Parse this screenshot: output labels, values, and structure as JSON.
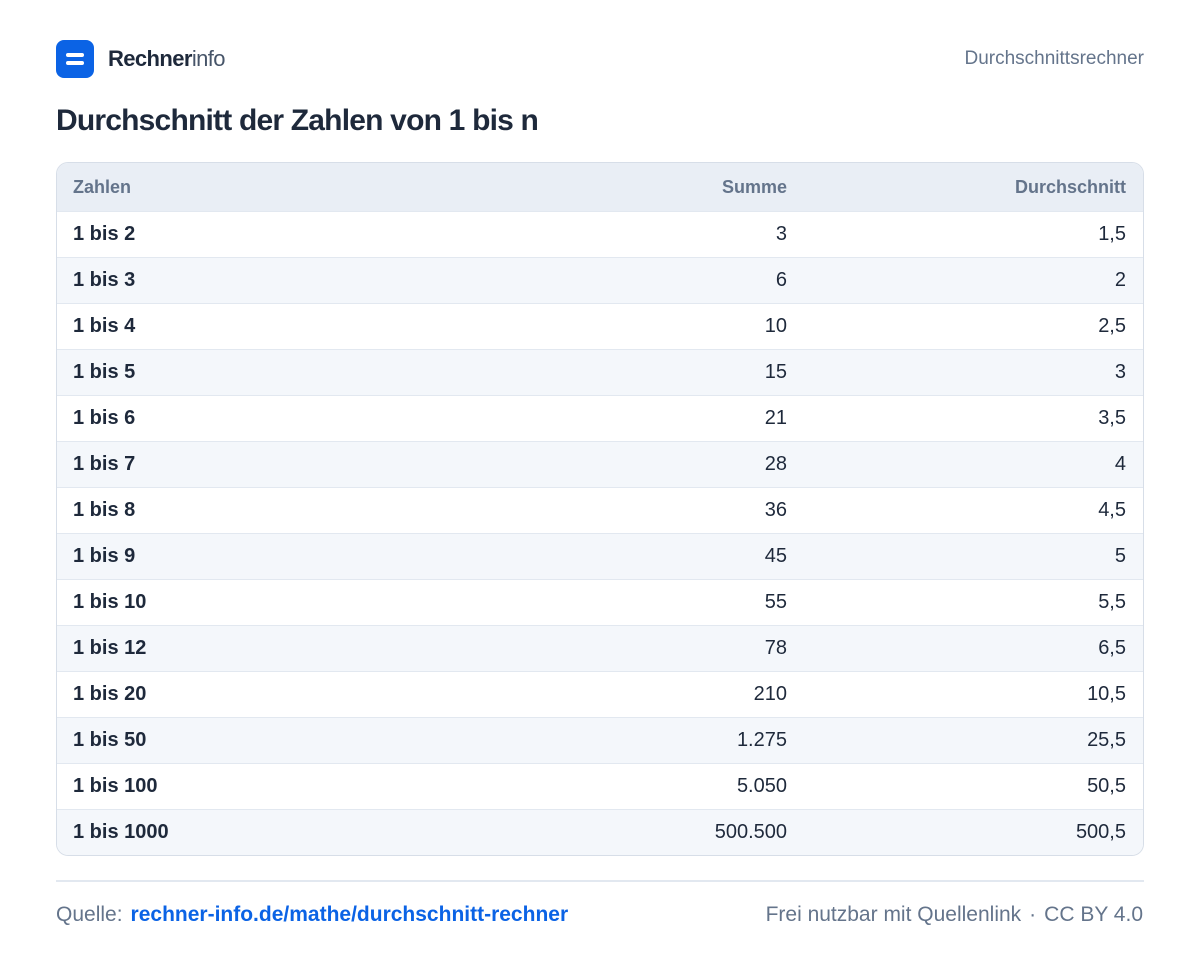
{
  "brand": {
    "name_bold": "Rechner",
    "name_light": "info"
  },
  "header": {
    "right_label": "Durchschnittsrechner"
  },
  "title": "Durchschnitt der Zahlen von 1 bis n",
  "table": {
    "headers": [
      "Zahlen",
      "Summe",
      "Durchschnitt"
    ],
    "rows": [
      [
        "1 bis 2",
        "3",
        "1,5"
      ],
      [
        "1 bis 3",
        "6",
        "2"
      ],
      [
        "1 bis 4",
        "10",
        "2,5"
      ],
      [
        "1 bis 5",
        "15",
        "3"
      ],
      [
        "1 bis 6",
        "21",
        "3,5"
      ],
      [
        "1 bis 7",
        "28",
        "4"
      ],
      [
        "1 bis 8",
        "36",
        "4,5"
      ],
      [
        "1 bis 9",
        "45",
        "5"
      ],
      [
        "1 bis 10",
        "55",
        "5,5"
      ],
      [
        "1 bis 12",
        "78",
        "6,5"
      ],
      [
        "1 bis 20",
        "210",
        "10,5"
      ],
      [
        "1 bis 50",
        "1.275",
        "25,5"
      ],
      [
        "1 bis 100",
        "5.050",
        "50,5"
      ],
      [
        "1 bis 1000",
        "500.500",
        "500,5"
      ]
    ]
  },
  "footer": {
    "source_label": "Quelle:",
    "source_link": "rechner-info.de/mathe/durchschnitt-rechner",
    "license_text": "Frei nutzbar mit Quellenlink",
    "separator": "·",
    "license": "CC BY 4.0"
  },
  "colors": {
    "accent": "#0b63e5",
    "header_bg": "#e9eef5",
    "alt_row_bg": "#f4f7fb",
    "text": "#1e293b",
    "muted": "#64748b"
  },
  "icons": {
    "logo": "logo-icon"
  }
}
